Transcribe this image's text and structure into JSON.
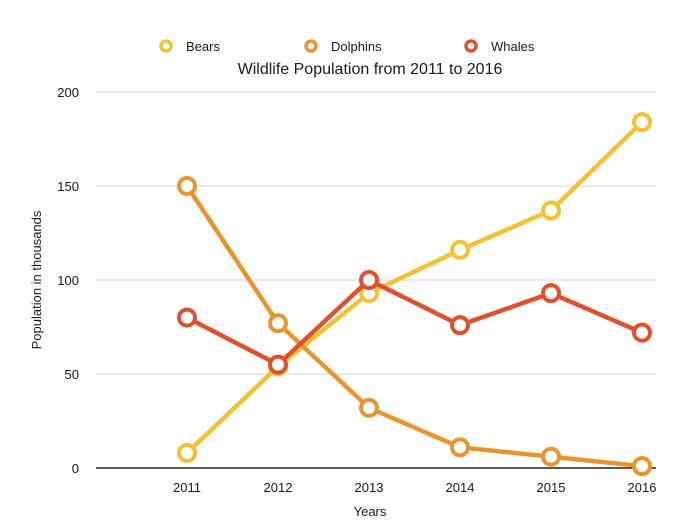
{
  "chart_data": {
    "type": "line",
    "title": "Wildlife Population from 2011 to 2016",
    "xlabel": "Years",
    "ylabel": "Population in thousands",
    "categories": [
      "2011",
      "2012",
      "2013",
      "2014",
      "2015",
      "2016"
    ],
    "ylim": [
      0,
      200
    ],
    "yticks": [
      0,
      50,
      100,
      150,
      200
    ],
    "grid": true,
    "legend_position": "top",
    "series": [
      {
        "name": "Bears",
        "color": "#f2c233",
        "values": [
          8,
          54,
          93,
          116,
          137,
          184
        ]
      },
      {
        "name": "Dolphins",
        "color": "#e8952e",
        "values": [
          150,
          77,
          32,
          11,
          6,
          1
        ]
      },
      {
        "name": "Whales",
        "color": "#e0502d",
        "values": [
          80,
          55,
          100,
          76,
          93,
          72
        ]
      }
    ]
  }
}
